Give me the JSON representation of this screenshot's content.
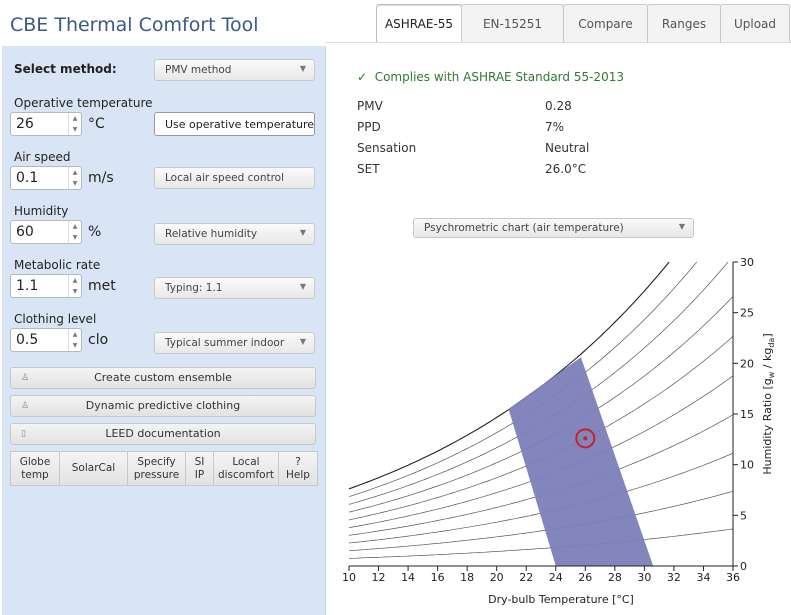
{
  "app": {
    "title": "CBE Thermal Comfort Tool"
  },
  "tabs": [
    {
      "label": "ASHRAE-55",
      "active": true
    },
    {
      "label": "EN-15251",
      "active": false
    },
    {
      "label": "Compare",
      "active": false
    },
    {
      "label": "Ranges",
      "active": false
    },
    {
      "label": "Upload",
      "active": false
    }
  ],
  "sidebar": {
    "method_label": "Select method:",
    "method_value": "PMV method",
    "operative_temperature": {
      "label": "Operative temperature",
      "value": "26",
      "unit": "°C",
      "toggle": "Use operative temperature"
    },
    "air_speed": {
      "label": "Air speed",
      "value": "0.1",
      "unit": "m/s",
      "option": "Local air speed control"
    },
    "humidity": {
      "label": "Humidity",
      "value": "60",
      "unit": "%",
      "option": "Relative humidity"
    },
    "metabolic_rate": {
      "label": "Metabolic rate",
      "value": "1.1",
      "unit": "met",
      "option": "Typing: 1.1"
    },
    "clothing_level": {
      "label": "Clothing level",
      "value": "0.5",
      "unit": "clo",
      "option": "Typical summer indoor"
    },
    "buttons": {
      "custom_ensemble": "Create custom ensemble",
      "dynamic_clothing": "Dynamic predictive clothing",
      "leed": "LEED documentation"
    },
    "tools": [
      {
        "line1": "Globe",
        "line2": "temp"
      },
      {
        "line1": "SolarCal",
        "line2": ""
      },
      {
        "line1": "Specify",
        "line2": "pressure"
      },
      {
        "line1": "SI",
        "line2": "IP"
      },
      {
        "line1": "Local",
        "line2": "discomfort"
      },
      {
        "line1": "?",
        "line2": "Help"
      }
    ]
  },
  "results": {
    "compliance": "Complies with ASHRAE Standard 55-2013",
    "compliance_icon": "check-icon",
    "rows": [
      {
        "key": "PMV",
        "value": "0.28"
      },
      {
        "key": "PPD",
        "value": "7%"
      },
      {
        "key": "Sensation",
        "value": "Neutral"
      },
      {
        "key": "SET",
        "value": "26.0°C"
      }
    ],
    "chart_selector": "Psychrometric chart (air temperature)"
  },
  "chart_data": {
    "type": "line",
    "title": "",
    "xlabel": "Dry-bulb Temperature [°C]",
    "ylabel_parts": {
      "main": "Humidity Ratio [g",
      "sub1": "w",
      "mid": " / kg",
      "sub2": "da",
      "end": "]"
    },
    "xlim": [
      10,
      36
    ],
    "ylim": [
      0,
      30
    ],
    "x_ticks": [
      10,
      12,
      14,
      16,
      18,
      20,
      22,
      24,
      26,
      28,
      30,
      32,
      34,
      36
    ],
    "y_ticks": [
      0,
      5,
      10,
      15,
      20,
      25,
      30
    ],
    "rh_curves_percent": [
      10,
      20,
      30,
      40,
      50,
      60,
      70,
      80,
      90,
      100
    ],
    "comfort_zone_polygon": [
      [
        24.0,
        0
      ],
      [
        30.6,
        0
      ],
      [
        25.7,
        20.6
      ],
      [
        20.8,
        15.5
      ]
    ],
    "current_point": {
      "temperature": 26,
      "humidity_ratio": 12.6
    },
    "colors": {
      "zone": "#7c7fb8",
      "point": "#cc1f2b",
      "curve": "#555555"
    }
  }
}
